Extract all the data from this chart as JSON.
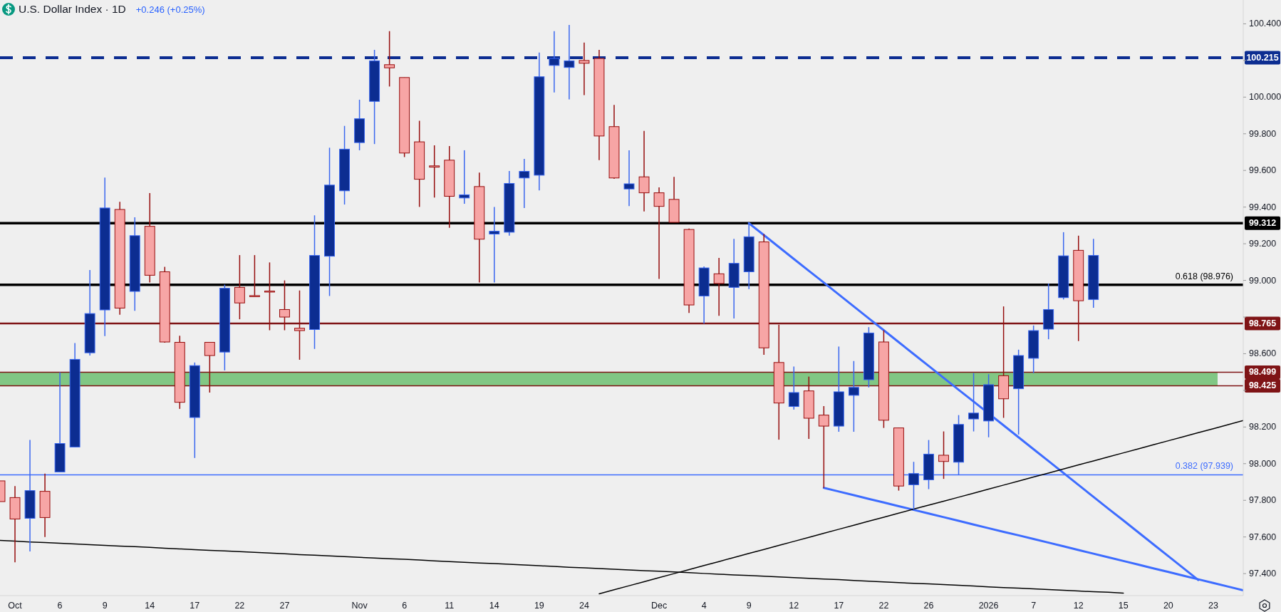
{
  "chart_data": {
    "type": "candlestick",
    "title": "U.S. Dollar Index · 1D",
    "subtitle": "+0.246 (+0.25%)",
    "categories": [
      null,
      "Oct",
      null,
      null,
      "6",
      null,
      null,
      "9",
      null,
      null,
      "14",
      null,
      null,
      "17",
      null,
      null,
      "22",
      null,
      null,
      "27",
      null,
      null,
      null,
      null,
      "Nov",
      null,
      null,
      "6",
      null,
      null,
      "11",
      null,
      null,
      "14",
      null,
      null,
      "19",
      null,
      null,
      "24",
      null,
      null,
      null,
      null,
      "Dec",
      null,
      null,
      "4",
      null,
      null,
      "9",
      null,
      null,
      "12",
      null,
      null,
      "17",
      null,
      null,
      "22",
      null,
      null,
      "26",
      null,
      null,
      null,
      "2026",
      null,
      null,
      "7",
      null,
      null,
      "12",
      null,
      null,
      "15",
      null,
      null,
      "20",
      null,
      null,
      "23",
      null,
      null
    ],
    "ohlc": [
      [
        97.906,
        97.906,
        97.793,
        97.793
      ],
      [
        97.815,
        97.878,
        97.462,
        97.698
      ],
      [
        97.702,
        98.129,
        97.521,
        97.853
      ],
      [
        97.849,
        97.946,
        97.6,
        97.706
      ],
      [
        97.955,
        98.499,
        97.955,
        98.11
      ],
      [
        98.091,
        98.658,
        98.091,
        98.569
      ],
      [
        98.605,
        99.057,
        98.59,
        98.819
      ],
      [
        98.839,
        99.561,
        98.696,
        99.395
      ],
      [
        99.387,
        99.429,
        98.813,
        98.849
      ],
      [
        98.94,
        99.344,
        98.834,
        99.244
      ],
      [
        99.295,
        99.476,
        98.989,
        99.028
      ],
      [
        99.047,
        99.074,
        98.66,
        98.664
      ],
      [
        98.662,
        98.698,
        98.299,
        98.335
      ],
      [
        98.252,
        98.552,
        98.031,
        98.535
      ],
      [
        98.662,
        98.662,
        98.388,
        98.59
      ],
      [
        98.609,
        98.977,
        98.509,
        98.957
      ],
      [
        98.962,
        99.138,
        98.788,
        98.877
      ],
      [
        98.917,
        99.138,
        98.909,
        98.913
      ],
      [
        98.942,
        99.098,
        98.728,
        98.938
      ],
      [
        98.841,
        99.0,
        98.728,
        98.8
      ],
      [
        98.739,
        98.945,
        98.567,
        98.726
      ],
      [
        98.732,
        99.355,
        98.626,
        99.136
      ],
      [
        99.132,
        99.724,
        98.915,
        99.52
      ],
      [
        99.489,
        99.843,
        99.414,
        99.716
      ],
      [
        99.752,
        99.986,
        99.71,
        99.882
      ],
      [
        99.977,
        100.258,
        99.744,
        100.198
      ],
      [
        100.177,
        100.36,
        100.058,
        100.16
      ],
      [
        100.107,
        100.107,
        99.673,
        99.695
      ],
      [
        99.756,
        99.871,
        99.401,
        99.552
      ],
      [
        99.625,
        99.737,
        99.452,
        99.618
      ],
      [
        99.656,
        99.733,
        99.287,
        99.459
      ],
      [
        99.45,
        99.71,
        99.418,
        99.467
      ],
      [
        99.512,
        99.588,
        98.989,
        99.225
      ],
      [
        99.253,
        99.401,
        98.989,
        99.268
      ],
      [
        99.263,
        99.597,
        99.244,
        99.529
      ],
      [
        99.559,
        99.663,
        99.395,
        99.595
      ],
      [
        99.574,
        100.243,
        99.491,
        100.111
      ],
      [
        100.173,
        100.36,
        100.026,
        100.211
      ],
      [
        100.162,
        100.394,
        99.988,
        100.198
      ],
      [
        100.2,
        100.298,
        100.011,
        100.185
      ],
      [
        100.211,
        100.258,
        99.656,
        99.788
      ],
      [
        99.839,
        99.958,
        99.554,
        99.559
      ],
      [
        99.499,
        99.71,
        99.406,
        99.527
      ],
      [
        99.565,
        99.816,
        99.376,
        99.478
      ],
      [
        99.478,
        99.508,
        99.008,
        99.404
      ],
      [
        99.442,
        99.565,
        99.317,
        99.317
      ],
      [
        99.278,
        99.283,
        98.822,
        98.866
      ],
      [
        98.915,
        99.076,
        98.764,
        99.068
      ],
      [
        99.036,
        99.123,
        98.807,
        98.983
      ],
      [
        98.962,
        99.227,
        98.792,
        99.093
      ],
      [
        99.047,
        99.308,
        98.953,
        99.238
      ],
      [
        99.21,
        99.253,
        98.594,
        98.632
      ],
      [
        98.552,
        98.758,
        98.131,
        98.331
      ],
      [
        98.312,
        98.53,
        98.295,
        98.388
      ],
      [
        98.397,
        98.475,
        98.135,
        98.248
      ],
      [
        98.265,
        98.314,
        97.868,
        98.205
      ],
      [
        98.205,
        98.639,
        98.174,
        98.392
      ],
      [
        98.373,
        98.56,
        98.174,
        98.416
      ],
      [
        98.458,
        98.745,
        98.416,
        98.713
      ],
      [
        98.664,
        98.728,
        98.195,
        98.237
      ],
      [
        98.195,
        98.195,
        97.853,
        97.878
      ],
      [
        97.885,
        98.01,
        97.751,
        97.946
      ],
      [
        97.912,
        98.129,
        97.861,
        98.052
      ],
      [
        98.046,
        98.176,
        97.917,
        98.012
      ],
      [
        98.008,
        98.265,
        97.938,
        98.214
      ],
      [
        98.244,
        98.494,
        98.176,
        98.276
      ],
      [
        98.233,
        98.488,
        98.144,
        98.431
      ],
      [
        98.48,
        98.858,
        98.25,
        98.354
      ],
      [
        98.409,
        98.622,
        98.159,
        98.59
      ],
      [
        98.575,
        98.754,
        98.494,
        98.726
      ],
      [
        98.734,
        98.983,
        98.679,
        98.841
      ],
      [
        98.906,
        99.263,
        98.896,
        99.134
      ],
      [
        99.164,
        99.244,
        98.669,
        98.889
      ],
      [
        98.896,
        99.227,
        98.851,
        99.136
      ],
      null,
      null,
      null,
      null,
      null,
      null,
      null,
      null,
      null,
      null
    ],
    "colors": [
      "#f7a5a5",
      "#f7a5a5",
      "#0c2d91",
      "#f7a5a5",
      "#0c2d91",
      "#0c2d91",
      "#0c2d91",
      "#0c2d91",
      "#f7a5a5",
      "#0c2d91",
      "#f7a5a5",
      "#f7a5a5",
      "#f7a5a5",
      "#0c2d91",
      "#f7a5a5",
      "#0c2d91",
      "#f7a5a5",
      "#f7a5a5",
      "#f7a5a5",
      "#f7a5a5",
      "#f7a5a5",
      "#0c2d91",
      "#0c2d91",
      "#0c2d91",
      "#0c2d91",
      "#0c2d91",
      "#f7a5a5",
      "#f7a5a5",
      "#f7a5a5",
      "#f7a5a5",
      "#f7a5a5",
      "#0c2d91",
      "#f7a5a5",
      "#0c2d91",
      "#0c2d91",
      "#0c2d91",
      "#0c2d91",
      "#0c2d91",
      "#0c2d91",
      "#f7a5a5",
      "#f7a5a5",
      "#f7a5a5",
      "#0c2d91",
      "#f7a5a5",
      "#f7a5a5",
      "#f7a5a5",
      "#f7a5a5",
      "#0c2d91",
      "#f7a5a5",
      "#0c2d91",
      "#0c2d91",
      "#f7a5a5",
      "#f7a5a5",
      "#0c2d91",
      "#f7a5a5",
      "#f7a5a5",
      "#0c2d91",
      "#0c2d91",
      "#0c2d91",
      "#f7a5a5",
      "#f7a5a5",
      "#0c2d91",
      "#0c2d91",
      "#f7a5a5",
      "#0c2d91",
      "#0c2d91",
      "#0c2d91",
      "#f7a5a5",
      "#0c2d91",
      "#0c2d91",
      "#0c2d91",
      "#0c2d91",
      "#f7a5a5",
      "#0c2d91",
      null,
      null,
      null,
      null,
      null,
      null,
      null,
      null,
      null,
      null
    ],
    "series": [
      {
        "type": "line",
        "color": "#3d6cff",
        "values": [
          null,
          null,
          null,
          null,
          null,
          null,
          null,
          null,
          null,
          null,
          null,
          null,
          null,
          null,
          null,
          null,
          null,
          null,
          null,
          null,
          null,
          null,
          null,
          null,
          null,
          null,
          null,
          null,
          null,
          null,
          null,
          null,
          null,
          null,
          null,
          null,
          null,
          null,
          null,
          null,
          null,
          null,
          null,
          null,
          null,
          null,
          null,
          null,
          null,
          null,
          99.312,
          99.247,
          99.182,
          99.117,
          99.052,
          98.988,
          98.923,
          98.858,
          98.793,
          98.728,
          98.663,
          98.598,
          98.533,
          98.468,
          98.403,
          98.339,
          null,
          98.209,
          98.144,
          98.079,
          98.014,
          97.949,
          97.884,
          97.819,
          97.754,
          97.69,
          97.625,
          97.56,
          97.495,
          97.43,
          97.365,
          null,
          null,
          null
        ]
      },
      {
        "type": "line",
        "color": "#3d6cff",
        "values": [
          null,
          null,
          null,
          null,
          null,
          null,
          null,
          null,
          null,
          null,
          null,
          null,
          null,
          null,
          null,
          null,
          null,
          null,
          null,
          null,
          null,
          null,
          null,
          null,
          null,
          null,
          null,
          null,
          null,
          null,
          null,
          null,
          null,
          null,
          null,
          null,
          null,
          null,
          null,
          null,
          null,
          null,
          null,
          null,
          null,
          null,
          null,
          null,
          null,
          null,
          null,
          null,
          null,
          null,
          null,
          97.868,
          97.848,
          97.828,
          97.808,
          97.788,
          97.768,
          97.748,
          97.728,
          97.708,
          97.688,
          97.668,
          97.648,
          97.628,
          97.609,
          97.589,
          97.569,
          97.549,
          97.529,
          97.509,
          97.489,
          97.469,
          97.449,
          97.429,
          97.409,
          97.389,
          97.369,
          97.349,
          97.329,
          97.309
        ]
      },
      {
        "type": "line",
        "color": "#000000",
        "values": [
          null,
          null,
          null,
          null,
          null,
          null,
          null,
          null,
          null,
          null,
          null,
          null,
          null,
          null,
          null,
          null,
          null,
          null,
          null,
          null,
          null,
          null,
          null,
          null,
          null,
          null,
          null,
          null,
          null,
          null,
          null,
          null,
          null,
          null,
          null,
          null,
          null,
          null,
          null,
          null,
          97.29,
          97.312,
          97.334,
          97.356,
          97.378,
          97.4,
          97.422,
          97.444,
          97.466,
          97.488,
          97.51,
          97.532,
          97.554,
          97.576,
          97.598,
          97.62,
          97.642,
          97.664,
          97.686,
          97.708,
          97.73,
          97.752,
          97.774,
          97.795,
          97.817,
          97.839,
          97.861,
          97.883,
          97.905,
          97.927,
          97.949,
          97.971,
          97.993,
          98.015,
          98.037,
          98.059,
          98.081,
          98.103,
          98.125,
          98.147,
          98.169,
          98.191,
          98.213,
          98.235
        ]
      },
      {
        "type": "line",
        "color": "#000000",
        "values": [
          97.581,
          97.577,
          97.573,
          97.57,
          97.566,
          97.562,
          97.558,
          97.554,
          97.55,
          97.547,
          97.543,
          97.539,
          97.535,
          97.531,
          97.527,
          97.524,
          97.52,
          97.516,
          97.512,
          97.508,
          97.504,
          97.501,
          97.497,
          97.493,
          97.489,
          97.485,
          97.481,
          97.478,
          97.474,
          97.47,
          97.466,
          97.462,
          97.458,
          97.455,
          97.451,
          97.447,
          97.443,
          97.439,
          97.435,
          97.432,
          97.428,
          97.424,
          97.42,
          97.416,
          97.413,
          97.409,
          97.405,
          97.401,
          97.397,
          97.393,
          97.39,
          97.386,
          97.382,
          97.378,
          97.374,
          97.37,
          97.367,
          97.363,
          97.359,
          97.355,
          97.351,
          97.347,
          97.344,
          97.34,
          97.336,
          97.332,
          97.328,
          97.324,
          97.321,
          97.317,
          97.313,
          97.309,
          97.305,
          97.301,
          97.298,
          97.294,
          null,
          null,
          null,
          null,
          null,
          null,
          null,
          null
        ]
      }
    ],
    "bands": [
      {
        "axis": "y",
        "from": 98.425,
        "to": 98.499,
        "color": "#81c784"
      }
    ],
    "ref_lines": [
      {
        "axis": "y",
        "value": 100.215,
        "label": "100.215",
        "color": "#0c2d91",
        "line_style": "dashed"
      },
      {
        "axis": "y",
        "value": 99.312,
        "label": "99.312",
        "color": "#000000"
      },
      {
        "axis": "y",
        "value": 98.976,
        "label": "0.618 (98.976)",
        "color": "#000000"
      },
      {
        "axis": "y",
        "value": 98.765,
        "label": "98.765",
        "color": "#7f1416"
      },
      {
        "axis": "y",
        "value": 98.499,
        "label": "98.499",
        "color": "#7f1416"
      },
      {
        "axis": "y",
        "value": 98.425,
        "label": "98.425",
        "color": "#7f1416"
      },
      {
        "axis": "y",
        "value": 97.939,
        "label": "0.382 (97.939)",
        "color": "#3d6cff"
      }
    ],
    "ylim": [
      97.28,
      100.53
    ],
    "yticks": [
      {
        "value": 97.4,
        "label": "97.400"
      },
      {
        "value": 97.6,
        "label": "97.600"
      },
      {
        "value": 97.8,
        "label": "97.800"
      },
      {
        "value": 98,
        "label": "98.000"
      },
      {
        "value": 98.2,
        "label": "98.200"
      },
      {
        "value": 98.4,
        "label": null
      },
      {
        "value": 98.6,
        "label": "98.600"
      },
      {
        "value": 98.8,
        "label": null
      },
      {
        "value": 99,
        "label": "99.000"
      },
      {
        "value": 99.2,
        "label": "99.200"
      },
      {
        "value": 99.4,
        "label": "99.400"
      },
      {
        "value": 99.6,
        "label": "99.600"
      },
      {
        "value": 99.8,
        "label": "99.800"
      },
      {
        "value": 100,
        "label": "100.000"
      },
      {
        "value": 100.2,
        "label": null
      },
      {
        "value": 100.4,
        "label": "100.400"
      }
    ]
  }
}
